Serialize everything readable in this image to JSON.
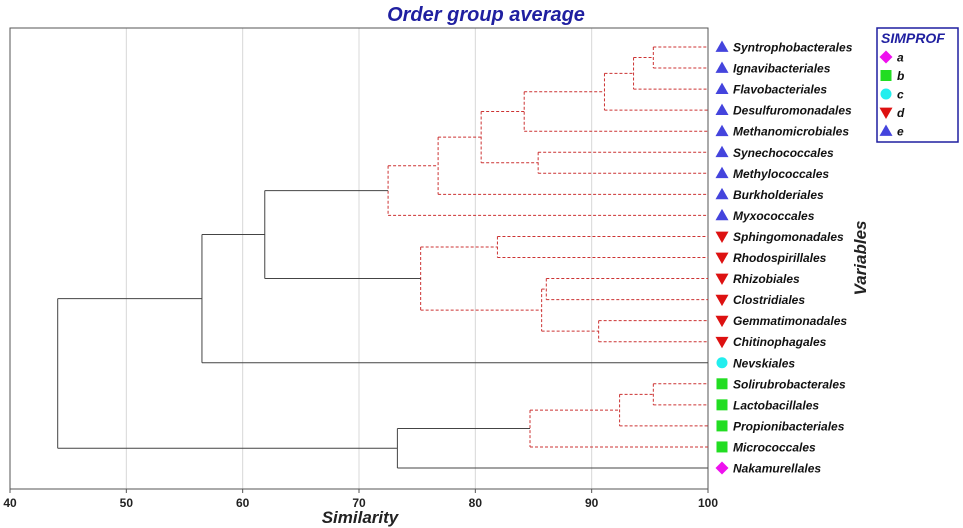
{
  "chart_data": {
    "type": "dendrogram",
    "title": "Order group average",
    "xlabel": "Similarity",
    "ylabel": "Variables",
    "xlim": [
      40,
      100
    ],
    "xticks": [
      40,
      50,
      60,
      70,
      80,
      90,
      100
    ],
    "grid": true,
    "legend": {
      "title": "SIMPROF",
      "placement": "top-right",
      "entries": [
        {
          "label": "a",
          "marker": "diamond",
          "color": "#ee11ee"
        },
        {
          "label": "b",
          "marker": "square",
          "color": "#22dd22"
        },
        {
          "label": "c",
          "marker": "circle",
          "color": "#22eeee"
        },
        {
          "label": "d",
          "marker": "triangle-down",
          "color": "#dd1111"
        },
        {
          "label": "e",
          "marker": "triangle-up",
          "color": "#4444dd"
        }
      ]
    },
    "leaves": [
      {
        "name": "Syntrophobacterales",
        "group": "e"
      },
      {
        "name": "Ignavibacteriales",
        "group": "e"
      },
      {
        "name": "Flavobacteriales",
        "group": "e"
      },
      {
        "name": "Desulfuromonadales",
        "group": "e"
      },
      {
        "name": "Methanomicrobiales",
        "group": "e"
      },
      {
        "name": "Synechococcales",
        "group": "e"
      },
      {
        "name": "Methylococcales",
        "group": "e"
      },
      {
        "name": "Burkholderiales",
        "group": "e"
      },
      {
        "name": "Myxococcales",
        "group": "e"
      },
      {
        "name": "Sphingomonadales",
        "group": "d"
      },
      {
        "name": "Rhodospirillales",
        "group": "d"
      },
      {
        "name": "Rhizobiales",
        "group": "d"
      },
      {
        "name": "Clostridiales",
        "group": "d"
      },
      {
        "name": "Gemmatimonadales",
        "group": "d"
      },
      {
        "name": "Chitinophagales",
        "group": "d"
      },
      {
        "name": "Nevskiales",
        "group": "c"
      },
      {
        "name": "Solirubrobacterales",
        "group": "b"
      },
      {
        "name": "Lactobacillales",
        "group": "b"
      },
      {
        "name": "Propionibacteriales",
        "group": "b"
      },
      {
        "name": "Micrococcales",
        "group": "b"
      },
      {
        "name": "Nakamurellales",
        "group": "a"
      }
    ],
    "merges": [
      {
        "id": "m1",
        "children": [
          0,
          1
        ],
        "similarity": 95.3,
        "style": "dashed"
      },
      {
        "id": "m2",
        "children": [
          "m1",
          2
        ],
        "similarity": 93.6,
        "style": "dashed"
      },
      {
        "id": "m3",
        "children": [
          "m2",
          3
        ],
        "similarity": 91.1,
        "style": "dashed"
      },
      {
        "id": "m4",
        "children": [
          "m3",
          4
        ],
        "similarity": 84.2,
        "style": "dashed"
      },
      {
        "id": "m5",
        "children": [
          5,
          6
        ],
        "similarity": 85.4,
        "style": "dashed"
      },
      {
        "id": "m6",
        "children": [
          "m4",
          "m5"
        ],
        "similarity": 80.5,
        "style": "dashed"
      },
      {
        "id": "m7",
        "children": [
          "m6",
          7
        ],
        "similarity": 76.8,
        "style": "dashed"
      },
      {
        "id": "m8",
        "children": [
          "m7",
          8
        ],
        "similarity": 72.5,
        "style": "dashed"
      },
      {
        "id": "m9",
        "children": [
          9,
          10
        ],
        "similarity": 81.9,
        "style": "dashed"
      },
      {
        "id": "m10",
        "children": [
          11,
          12
        ],
        "similarity": 86.1,
        "style": "dashed"
      },
      {
        "id": "m11",
        "children": [
          13,
          14
        ],
        "similarity": 90.6,
        "style": "dashed"
      },
      {
        "id": "m12",
        "children": [
          "m10",
          "m11"
        ],
        "similarity": 85.7,
        "style": "dashed"
      },
      {
        "id": "m13",
        "children": [
          "m9",
          "m12"
        ],
        "similarity": 75.3,
        "style": "dashed"
      },
      {
        "id": "m14",
        "children": [
          "m8",
          "m13"
        ],
        "similarity": 61.9,
        "style": "solid"
      },
      {
        "id": "m15",
        "children": [
          "m14",
          15
        ],
        "similarity": 56.5,
        "style": "solid"
      },
      {
        "id": "m16",
        "children": [
          16,
          17
        ],
        "similarity": 95.3,
        "style": "dashed"
      },
      {
        "id": "m17",
        "children": [
          "m16",
          18
        ],
        "similarity": 92.4,
        "style": "dashed"
      },
      {
        "id": "m18",
        "children": [
          "m17",
          19
        ],
        "similarity": 84.7,
        "style": "dashed"
      },
      {
        "id": "m19",
        "children": [
          "m18",
          20
        ],
        "similarity": 73.3,
        "style": "solid"
      },
      {
        "id": "m20",
        "children": [
          "m15",
          "m19"
        ],
        "similarity": 44.1,
        "style": "solid"
      }
    ],
    "colors": {
      "dashed_branch": "#cc3333",
      "solid_branch": "#444444",
      "grid": "#d8d8d8",
      "title": "#1f1fa0",
      "legend_border": "#1f1fa0"
    }
  }
}
